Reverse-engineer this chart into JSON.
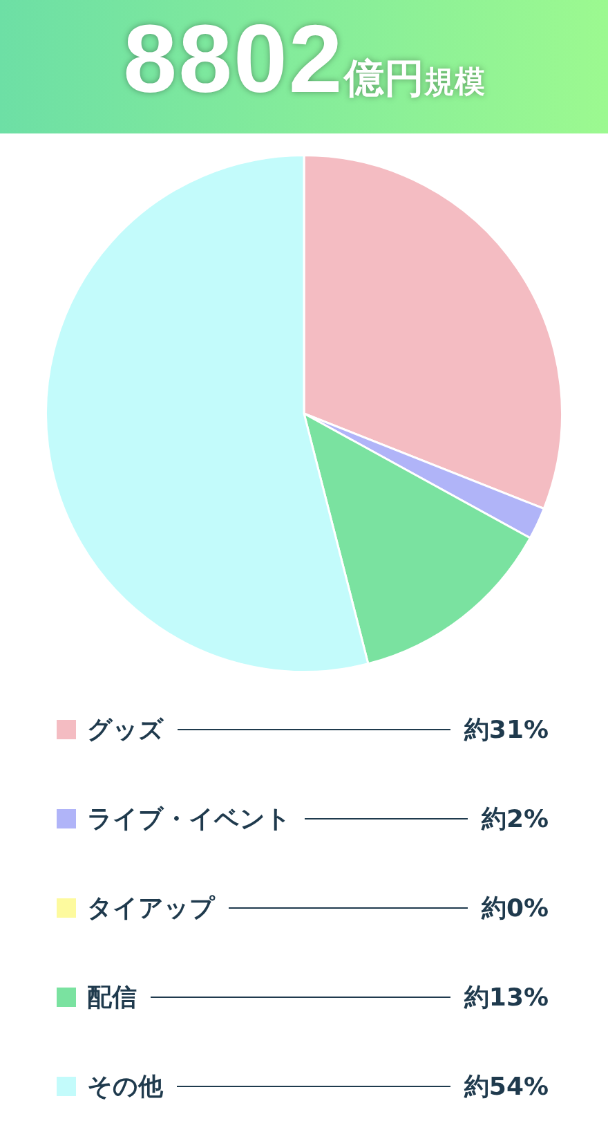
{
  "chart_data": {
    "type": "pie",
    "title": "8802億円規模",
    "categories": [
      "グッズ",
      "ライブ・イベント",
      "タイアップ",
      "配信",
      "その他"
    ],
    "values": [
      31,
      2,
      0,
      13,
      54
    ],
    "value_labels": [
      "約31%",
      "約2%",
      "約0%",
      "約13%",
      "約54%"
    ],
    "colors": [
      "#f4bcc2",
      "#b0b4f8",
      "#fdfa9e",
      "#7ae2a0",
      "#c3fbfb"
    ],
    "legend": "bottom"
  }
}
